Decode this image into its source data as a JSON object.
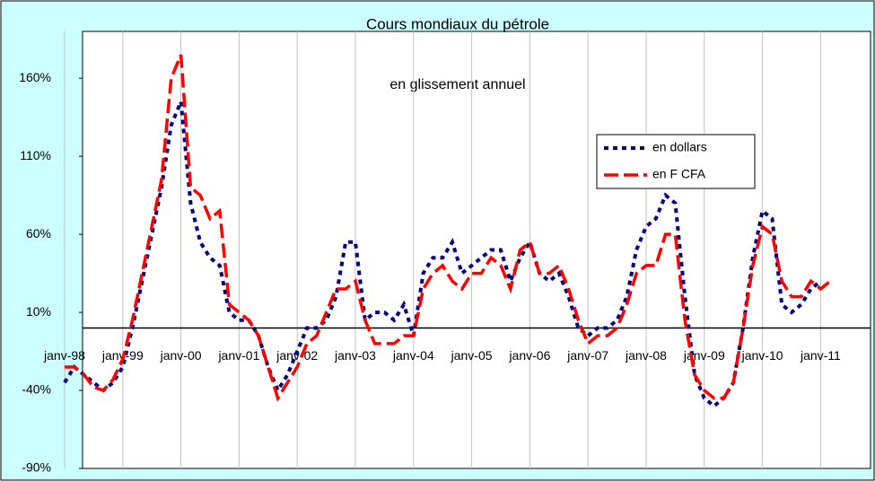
{
  "chart_data": {
    "type": "line",
    "title": "Cours mondiaux du pétrole",
    "annotation": "en glissement annuel",
    "categories": [
      "janv-98",
      null,
      null,
      null,
      null,
      null,
      "janv-99",
      null,
      null,
      null,
      null,
      null,
      "janv-00",
      null,
      null,
      null,
      null,
      null,
      "janv-01",
      null,
      null,
      null,
      null,
      null,
      "janv-02",
      null,
      null,
      null,
      null,
      null,
      "janv-03",
      null,
      null,
      null,
      null,
      null,
      "janv-04",
      null,
      null,
      null,
      null,
      null,
      "janv-05",
      null,
      null,
      null,
      null,
      null,
      "janv-06",
      null,
      null,
      null,
      null,
      null,
      "janv-07",
      null,
      null,
      null,
      null,
      null,
      "janv-08",
      null,
      null,
      null,
      null,
      null,
      "janv-09",
      null,
      null,
      null,
      null,
      null,
      "janv-10",
      null,
      null,
      null,
      null,
      null,
      "janv-11",
      null
    ],
    "series": [
      {
        "name": "en dollars",
        "color": "#000080",
        "values": [
          -35,
          -25,
          -30,
          -35,
          -40,
          -35,
          -25,
          0,
          30,
          60,
          90,
          130,
          145,
          80,
          55,
          45,
          40,
          10,
          5,
          5,
          -5,
          -25,
          -40,
          -30,
          -15,
          0,
          0,
          5,
          20,
          55,
          55,
          5,
          10,
          10,
          5,
          15,
          -5,
          35,
          45,
          45,
          55,
          35,
          40,
          45,
          50,
          50,
          30,
          45,
          55,
          35,
          30,
          35,
          20,
          0,
          -5,
          0,
          0,
          5,
          20,
          50,
          65,
          70,
          85,
          80,
          20,
          -30,
          -45,
          -50,
          -45,
          -35,
          0,
          45,
          75,
          70,
          15,
          10,
          15,
          25,
          30,
          null
        ]
      },
      {
        "name": "en F CFA",
        "color": "#ff0000",
        "values": [
          -25,
          -25,
          -30,
          -38,
          -40,
          -33,
          -20,
          5,
          35,
          65,
          95,
          160,
          175,
          90,
          85,
          70,
          75,
          15,
          10,
          5,
          -5,
          -25,
          -45,
          -35,
          -25,
          -10,
          -5,
          10,
          25,
          25,
          30,
          5,
          -10,
          -10,
          -10,
          -5,
          -5,
          25,
          35,
          40,
          30,
          25,
          35,
          35,
          45,
          40,
          25,
          50,
          55,
          35,
          35,
          40,
          25,
          5,
          -10,
          -5,
          -5,
          0,
          15,
          35,
          40,
          40,
          60,
          60,
          5,
          -30,
          -40,
          -45,
          -45,
          -35,
          0,
          40,
          65,
          60,
          30,
          20,
          20,
          30,
          25,
          30
        ]
      }
    ],
    "ylim": [
      -90,
      190
    ],
    "yticks": [
      {
        "value": -90,
        "label": "-90%"
      },
      {
        "value": -40,
        "label": "-40%"
      },
      {
        "value": 10,
        "label": "10%"
      },
      {
        "value": 60,
        "label": "60%"
      },
      {
        "value": 110,
        "label": "110%"
      },
      {
        "value": 160,
        "label": "160%"
      }
    ],
    "xgrid": true,
    "legend": "upper right"
  }
}
